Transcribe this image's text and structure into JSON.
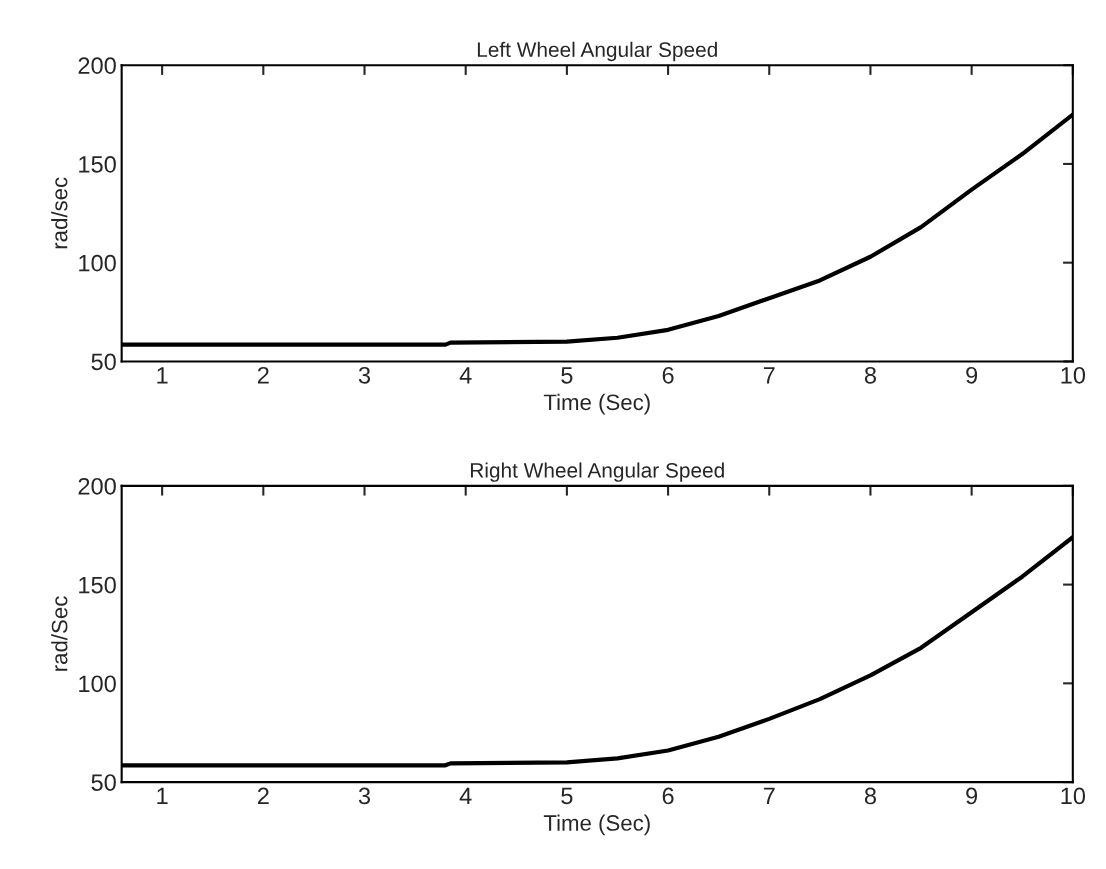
{
  "chart_data": [
    {
      "type": "line",
      "title": "Left Wheel Angular Speed",
      "xlabel": "Time (Sec)",
      "ylabel": "rad/sec",
      "series": [
        {
          "color": "#000000",
          "x": [
            0.6,
            3.8,
            3.85,
            5.0,
            5.5,
            6.0,
            6.5,
            7.0,
            7.5,
            8.0,
            8.5,
            9.0,
            9.5,
            10.0
          ],
          "values": [
            58.5,
            58.5,
            59.5,
            60,
            62,
            66,
            73,
            82,
            91,
            103,
            118,
            137,
            155,
            175
          ]
        }
      ],
      "xlim": [
        0.6,
        10
      ],
      "xticks": [
        1,
        2,
        3,
        4,
        5,
        6,
        7,
        8,
        9,
        10
      ],
      "ylim": [
        50,
        200
      ],
      "yticks": [
        50,
        100,
        150,
        200
      ],
      "grid": false,
      "line_style": "solid",
      "marker": "none"
    },
    {
      "type": "line",
      "title": "Right Wheel Angular Speed",
      "xlabel": "Time (Sec)",
      "ylabel": "rad/Sec",
      "series": [
        {
          "color": "#000000",
          "x": [
            0.6,
            3.8,
            3.85,
            5.0,
            5.5,
            6.0,
            6.5,
            7.0,
            7.5,
            8.0,
            8.5,
            9.0,
            9.5,
            10.0
          ],
          "values": [
            58.5,
            58.5,
            59.5,
            60,
            62,
            66,
            73,
            82,
            92,
            104,
            118,
            136,
            154,
            174
          ]
        }
      ],
      "xlim": [
        0.6,
        10
      ],
      "xticks": [
        1,
        2,
        3,
        4,
        5,
        6,
        7,
        8,
        9,
        10
      ],
      "ylim": [
        50,
        200
      ],
      "yticks": [
        50,
        100,
        150,
        200
      ],
      "grid": false,
      "line_style": "solid",
      "marker": "none"
    }
  ]
}
